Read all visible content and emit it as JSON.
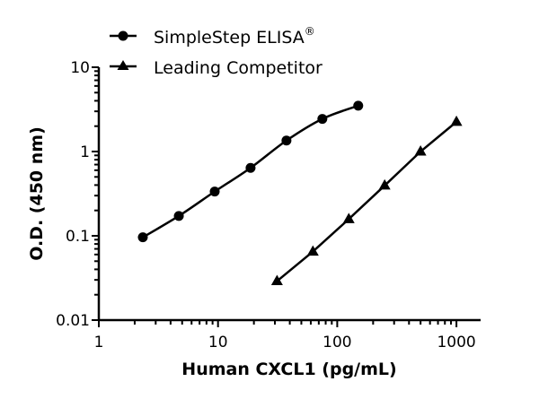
{
  "chart_data": {
    "type": "line",
    "xlabel": "Human CXCL1 (pg/mL)",
    "ylabel": "O.D. (450 nm)",
    "x_scale": "log",
    "y_scale": "log",
    "xlim": [
      1,
      1600
    ],
    "ylim": [
      0.01,
      10
    ],
    "x_ticks": [
      "1",
      "10",
      "100",
      "1000"
    ],
    "y_ticks": [
      "0.01",
      "0.1",
      "1",
      "10"
    ],
    "grid": false,
    "legend_position": "top",
    "series": [
      {
        "name": "SimpleStep ELISA",
        "name_suffix": "®",
        "marker": "circle",
        "smooth": true,
        "x": [
          2.34,
          4.69,
          9.38,
          18.75,
          37.5,
          75,
          150
        ],
        "y": [
          0.096,
          0.172,
          0.335,
          0.64,
          1.35,
          2.44,
          3.5
        ]
      },
      {
        "name": "Leading Competitor",
        "marker": "triangle",
        "smooth": false,
        "x": [
          31.25,
          62.5,
          125,
          250,
          500,
          1000
        ],
        "y": [
          0.029,
          0.065,
          0.158,
          0.395,
          1.0,
          2.25
        ]
      }
    ],
    "color": "#000000"
  }
}
